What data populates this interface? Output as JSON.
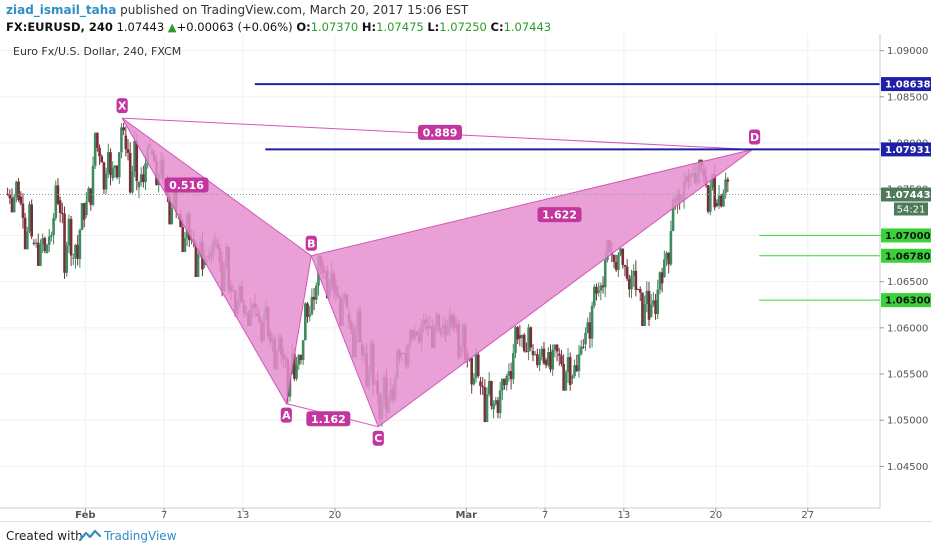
{
  "header": {
    "author": "ziad_ismail_taha",
    "published_text": "published on TradingView.com, March 20, 2017 15:06 EST",
    "symbol": "FX:EURUSD, 240",
    "last": "1.07443",
    "arrow": "▲",
    "change": "+0.00063 (+0.06%)",
    "o_label": "O:",
    "o_value": "1.07370",
    "h_label": "H:",
    "h_value": "1.07475",
    "l_label": "L:",
    "l_value": "1.07250",
    "c_label": "C:",
    "c_value": "1.07443",
    "chart_title": "Euro Fx/U.S. Dollar, 240, FXCM"
  },
  "footer": {
    "created_with": "Created with",
    "brand": "TradingView",
    "icon": "tradingview-logo-icon"
  },
  "colors": {
    "candle_up": "#3f8a5f",
    "candle_down": "#7a2e3a",
    "pattern_fill": "#e58fcf",
    "pattern_stroke": "#d257b8",
    "label_bg": "#c2369e",
    "blue_line": "#1f1fa8",
    "green_line": "#39d339",
    "grid": "#eef1f4",
    "price_tag": "#4e7a5a"
  },
  "chart_data": {
    "type": "candlestick",
    "instrument": "Euro Fx/U.S. Dollar",
    "timeframe": "240",
    "y_ticks": [
      1.09,
      1.085,
      1.08,
      1.075,
      1.07,
      1.065,
      1.06,
      1.055,
      1.05,
      1.045
    ],
    "y_tick_labels": [
      "1.09000",
      "1.08500",
      "1.08000",
      "1.07500",
      "1.07000",
      "1.06500",
      "1.06000",
      "1.05500",
      "1.05000",
      "1.04500"
    ],
    "ylim": [
      1.0405,
      1.0918
    ],
    "x_ticks": [
      {
        "day": 1,
        "label": "Feb"
      },
      {
        "day": 7,
        "label": "7"
      },
      {
        "day": 13,
        "label": "13"
      },
      {
        "day": 20,
        "label": "20"
      },
      {
        "day": 30,
        "label": "Mar"
      },
      {
        "day": 36,
        "label": "7"
      },
      {
        "day": 42,
        "label": "13"
      },
      {
        "day": 49,
        "label": "20"
      },
      {
        "day": 56,
        "label": "27"
      }
    ],
    "xlim": [
      -5.5,
      61.5
    ],
    "horizontal_levels": [
      {
        "price": 1.08638,
        "label": "1.08638",
        "color": "#1f1fa8",
        "from_day": 13.9
      },
      {
        "price": 1.07931,
        "label": "1.07931",
        "color": "#1f1fa8",
        "from_day": 14.7
      },
      {
        "price": 1.07,
        "label": "1.07000",
        "color": "#39d339",
        "from_day": 52.3
      },
      {
        "price": 1.0678,
        "label": "1.06780",
        "color": "#39d339",
        "from_day": 52.3
      },
      {
        "price": 1.063,
        "label": "1.06300",
        "color": "#39d339",
        "from_day": 52.3
      }
    ],
    "last_price": {
      "price": 1.07443,
      "label": "1.07443",
      "countdown": "54:21"
    },
    "gartley_points": [
      {
        "name": "X",
        "day": 3.8,
        "price": 1.0827
      },
      {
        "name": "A",
        "day": 16.3,
        "price": 1.0518
      },
      {
        "name": "B",
        "day": 18.2,
        "price": 1.0678
      },
      {
        "name": "C",
        "day": 23.3,
        "price": 1.0493
      },
      {
        "name": "D",
        "day": 51.8,
        "price": 1.0793
      }
    ],
    "ratios": [
      {
        "label": "0.889",
        "day": 28.0,
        "price": 1.0811
      },
      {
        "label": "0.516",
        "day": 8.7,
        "price": 1.0754
      },
      {
        "label": "1.622",
        "day": 37.1,
        "price": 1.0722
      },
      {
        "label": "1.162",
        "day": 19.5,
        "price": 1.0501
      }
    ],
    "ohlc_sampled": [
      {
        "day": -5.0,
        "open": 1.0745,
        "high": 1.0762,
        "low": 1.0725,
        "close": 1.0742
      },
      {
        "day": -4.0,
        "open": 1.0742,
        "high": 1.0748,
        "low": 1.0685,
        "close": 1.0692
      },
      {
        "day": -3.0,
        "open": 1.0692,
        "high": 1.0702,
        "low": 1.0667,
        "close": 1.0681
      },
      {
        "day": -2.0,
        "open": 1.0681,
        "high": 1.0762,
        "low": 1.0675,
        "close": 1.0738
      },
      {
        "day": -1.0,
        "open": 1.0738,
        "high": 1.0742,
        "low": 1.0648,
        "close": 1.0675
      },
      {
        "day": 0.0,
        "open": 1.0675,
        "high": 1.0735,
        "low": 1.0655,
        "close": 1.0722
      },
      {
        "day": 1.0,
        "open": 1.0722,
        "high": 1.0818,
        "low": 1.0715,
        "close": 1.0795
      },
      {
        "day": 2.0,
        "open": 1.0795,
        "high": 1.0812,
        "low": 1.0742,
        "close": 1.0762
      },
      {
        "day": 3.0,
        "open": 1.0762,
        "high": 1.0822,
        "low": 1.0752,
        "close": 1.0808
      },
      {
        "day": 4.0,
        "open": 1.0808,
        "high": 1.0818,
        "low": 1.0745,
        "close": 1.0752
      },
      {
        "day": 5.0,
        "open": 1.0752,
        "high": 1.0805,
        "low": 1.0738,
        "close": 1.0792
      },
      {
        "day": 6.0,
        "open": 1.0792,
        "high": 1.0798,
        "low": 1.0745,
        "close": 1.0755
      },
      {
        "day": 7.0,
        "open": 1.0755,
        "high": 1.0772,
        "low": 1.0712,
        "close": 1.0722
      },
      {
        "day": 8.0,
        "open": 1.0722,
        "high": 1.0738,
        "low": 1.0682,
        "close": 1.0695
      },
      {
        "day": 9.0,
        "open": 1.0695,
        "high": 1.0708,
        "low": 1.0655,
        "close": 1.0668
      },
      {
        "day": 10.0,
        "open": 1.0668,
        "high": 1.0702,
        "low": 1.066,
        "close": 1.0692
      },
      {
        "day": 11.0,
        "open": 1.0692,
        "high": 1.0698,
        "low": 1.0632,
        "close": 1.0645
      },
      {
        "day": 12.0,
        "open": 1.0645,
        "high": 1.0652,
        "low": 1.0612,
        "close": 1.0625
      },
      {
        "day": 13.0,
        "open": 1.0625,
        "high": 1.0638,
        "low": 1.0602,
        "close": 1.0615
      },
      {
        "day": 14.0,
        "open": 1.0615,
        "high": 1.063,
        "low": 1.058,
        "close": 1.0595
      },
      {
        "day": 15.0,
        "open": 1.0595,
        "high": 1.0605,
        "low": 1.0555,
        "close": 1.0572
      },
      {
        "day": 16.0,
        "open": 1.0572,
        "high": 1.0585,
        "low": 1.0518,
        "close": 1.0545
      },
      {
        "day": 17.0,
        "open": 1.0545,
        "high": 1.0628,
        "low": 1.054,
        "close": 1.0612
      },
      {
        "day": 18.0,
        "open": 1.0612,
        "high": 1.0678,
        "low": 1.0605,
        "close": 1.0668
      },
      {
        "day": 19.0,
        "open": 1.0668,
        "high": 1.0675,
        "low": 1.0632,
        "close": 1.0645
      },
      {
        "day": 20.0,
        "open": 1.0645,
        "high": 1.0655,
        "low": 1.0602,
        "close": 1.0615
      },
      {
        "day": 21.0,
        "open": 1.0615,
        "high": 1.0625,
        "low": 1.0568,
        "close": 1.0582
      },
      {
        "day": 22.0,
        "open": 1.0582,
        "high": 1.0595,
        "low": 1.0525,
        "close": 1.0542
      },
      {
        "day": 23.0,
        "open": 1.0542,
        "high": 1.0562,
        "low": 1.0493,
        "close": 1.0508
      },
      {
        "day": 24.0,
        "open": 1.0508,
        "high": 1.0582,
        "low": 1.0502,
        "close": 1.0572
      },
      {
        "day": 25.0,
        "open": 1.0572,
        "high": 1.0598,
        "low": 1.0555,
        "close": 1.0588
      },
      {
        "day": 26.0,
        "open": 1.0588,
        "high": 1.0615,
        "low": 1.0575,
        "close": 1.0602
      },
      {
        "day": 27.0,
        "open": 1.0602,
        "high": 1.0618,
        "low": 1.0578,
        "close": 1.0592
      },
      {
        "day": 28.0,
        "open": 1.0592,
        "high": 1.0622,
        "low": 1.0585,
        "close": 1.0612
      },
      {
        "day": 29.0,
        "open": 1.0612,
        "high": 1.0618,
        "low": 1.0562,
        "close": 1.0572
      },
      {
        "day": 30.0,
        "open": 1.0572,
        "high": 1.0582,
        "low": 1.0528,
        "close": 1.0542
      },
      {
        "day": 31.0,
        "open": 1.0542,
        "high": 1.0552,
        "low": 1.0498,
        "close": 1.0512
      },
      {
        "day": 32.0,
        "open": 1.0512,
        "high": 1.0545,
        "low": 1.0502,
        "close": 1.0538
      },
      {
        "day": 33.0,
        "open": 1.0538,
        "high": 1.0602,
        "low": 1.0532,
        "close": 1.0592
      },
      {
        "day": 34.0,
        "open": 1.0592,
        "high": 1.0612,
        "low": 1.0565,
        "close": 1.0575
      },
      {
        "day": 35.0,
        "open": 1.0575,
        "high": 1.0588,
        "low": 1.0552,
        "close": 1.0565
      },
      {
        "day": 36.0,
        "open": 1.0565,
        "high": 1.0582,
        "low": 1.0548,
        "close": 1.0572
      },
      {
        "day": 37.0,
        "open": 1.0572,
        "high": 1.0578,
        "low": 1.0532,
        "close": 1.0545
      },
      {
        "day": 38.0,
        "open": 1.0545,
        "high": 1.0588,
        "low": 1.0538,
        "close": 1.0582
      },
      {
        "day": 39.0,
        "open": 1.0582,
        "high": 1.0648,
        "low": 1.0575,
        "close": 1.0638
      },
      {
        "day": 40.0,
        "open": 1.0638,
        "high": 1.0695,
        "low": 1.0628,
        "close": 1.0682
      },
      {
        "day": 41.0,
        "open": 1.0682,
        "high": 1.0702,
        "low": 1.0655,
        "close": 1.0668
      },
      {
        "day": 42.0,
        "open": 1.0668,
        "high": 1.0675,
        "low": 1.0632,
        "close": 1.0642
      },
      {
        "day": 43.0,
        "open": 1.0642,
        "high": 1.0655,
        "low": 1.0602,
        "close": 1.0612
      },
      {
        "day": 44.0,
        "open": 1.0612,
        "high": 1.0665,
        "low": 1.0605,
        "close": 1.0655
      },
      {
        "day": 45.0,
        "open": 1.0655,
        "high": 1.0745,
        "low": 1.0648,
        "close": 1.0735
      },
      {
        "day": 46.0,
        "open": 1.0735,
        "high": 1.0772,
        "low": 1.0718,
        "close": 1.0762
      },
      {
        "day": 47.0,
        "open": 1.0762,
        "high": 1.0782,
        "low": 1.0745,
        "close": 1.0772
      },
      {
        "day": 48.0,
        "open": 1.0772,
        "high": 1.0778,
        "low": 1.0722,
        "close": 1.0735
      },
      {
        "day": 49.0,
        "open": 1.0735,
        "high": 1.0768,
        "low": 1.0728,
        "close": 1.0758
      },
      {
        "day": 50.0,
        "open": 1.0758,
        "high": 1.0765,
        "low": 1.0725,
        "close": 1.0744
      }
    ]
  }
}
